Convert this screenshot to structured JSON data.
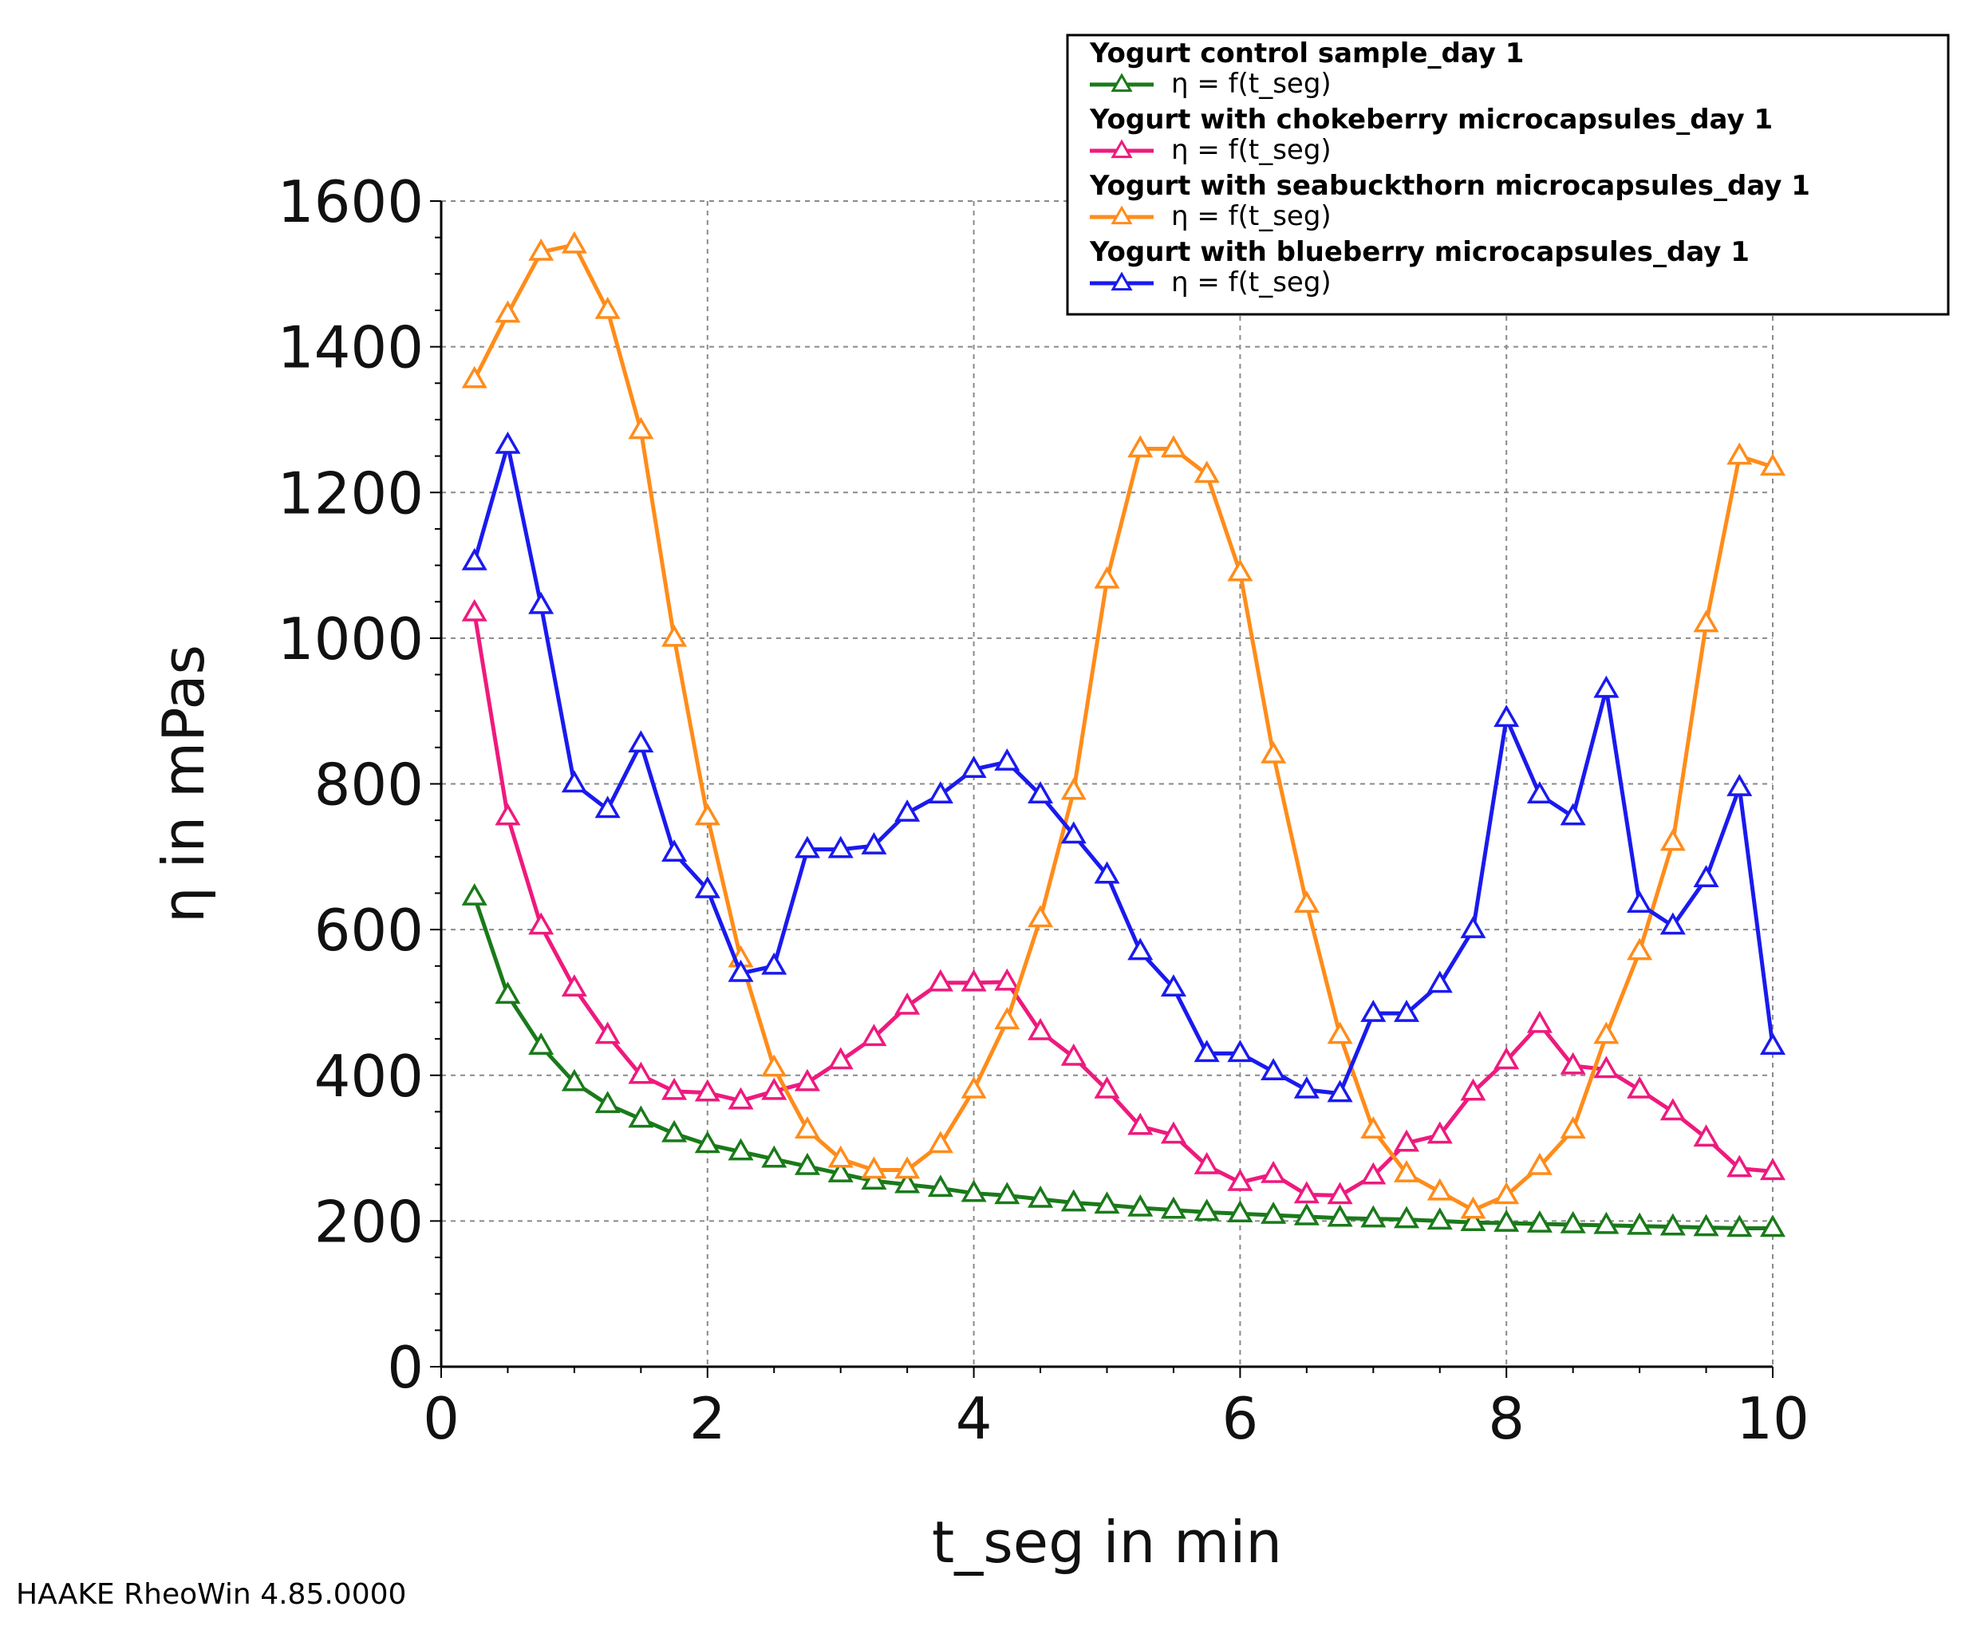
{
  "footer": "HAAKE RheoWin 4.85.0000",
  "chart_data": {
    "type": "line",
    "xlabel": "t_seg in min",
    "ylabel": "η in mPas",
    "xlim": [
      0,
      10
    ],
    "ylim": [
      0,
      1600
    ],
    "xticks": [
      0,
      2,
      4,
      6,
      8,
      10
    ],
    "yticks": [
      0,
      200,
      400,
      600,
      800,
      1000,
      1200,
      1400,
      1600
    ],
    "grid": true,
    "legend_position": "top-right",
    "marker": "open-triangle",
    "x": [
      0.25,
      0.5,
      0.75,
      1.0,
      1.25,
      1.5,
      1.75,
      2.0,
      2.25,
      2.5,
      2.75,
      3.0,
      3.25,
      3.5,
      3.75,
      4.0,
      4.25,
      4.5,
      4.75,
      5.0,
      5.25,
      5.5,
      5.75,
      6.0,
      6.25,
      6.5,
      6.75,
      7.0,
      7.25,
      7.5,
      7.75,
      8.0,
      8.25,
      8.5,
      8.75,
      9.0,
      9.25,
      9.5,
      9.75,
      10.0
    ],
    "series": [
      {
        "title": "Yogurt control sample_day 1",
        "name": "η = f(t_seg)",
        "color": "#1a7a1a",
        "values": [
          645,
          510,
          440,
          390,
          360,
          340,
          320,
          305,
          295,
          285,
          275,
          265,
          255,
          250,
          245,
          238,
          235,
          230,
          225,
          222,
          218,
          215,
          212,
          210,
          208,
          206,
          204,
          203,
          202,
          200,
          198,
          197,
          196,
          195,
          194,
          193,
          192,
          191,
          190,
          190
        ]
      },
      {
        "title": "Yogurt with chokeberry microcapsules_day 1",
        "name": "η = f(t_seg)",
        "color": "#ee1a7e",
        "values": [
          1035,
          755,
          605,
          520,
          455,
          400,
          378,
          376,
          365,
          378,
          390,
          420,
          452,
          495,
          527,
          527,
          528,
          460,
          425,
          380,
          330,
          318,
          276,
          253,
          264,
          236,
          235,
          262,
          307,
          318,
          377,
          420,
          470,
          413,
          408,
          380,
          350,
          314,
          272,
          268
        ]
      },
      {
        "title": "Yogurt with seabuckthorn microcapsules_day 1",
        "name": "η = f(t_seg)",
        "color": "#ff8c1a",
        "values": [
          1355,
          1445,
          1530,
          1540,
          1450,
          1285,
          1000,
          755,
          560,
          410,
          325,
          285,
          270,
          270,
          305,
          380,
          475,
          615,
          790,
          1080,
          1260,
          1260,
          1225,
          1090,
          840,
          635,
          455,
          325,
          265,
          240,
          215,
          235,
          275,
          325,
          455,
          570,
          720,
          1020,
          1250,
          1235
        ]
      },
      {
        "title": "Yogurt with blueberry microcapsules_day 1",
        "name": "η = f(t_seg)",
        "color": "#1a1aee",
        "values": [
          1105,
          1265,
          1045,
          800,
          765,
          855,
          705,
          655,
          540,
          550,
          710,
          710,
          715,
          760,
          785,
          820,
          830,
          785,
          730,
          675,
          570,
          520,
          430,
          430,
          405,
          380,
          375,
          485,
          485,
          525,
          600,
          890,
          785,
          755,
          930,
          635,
          605,
          670,
          795,
          440
        ]
      }
    ]
  }
}
